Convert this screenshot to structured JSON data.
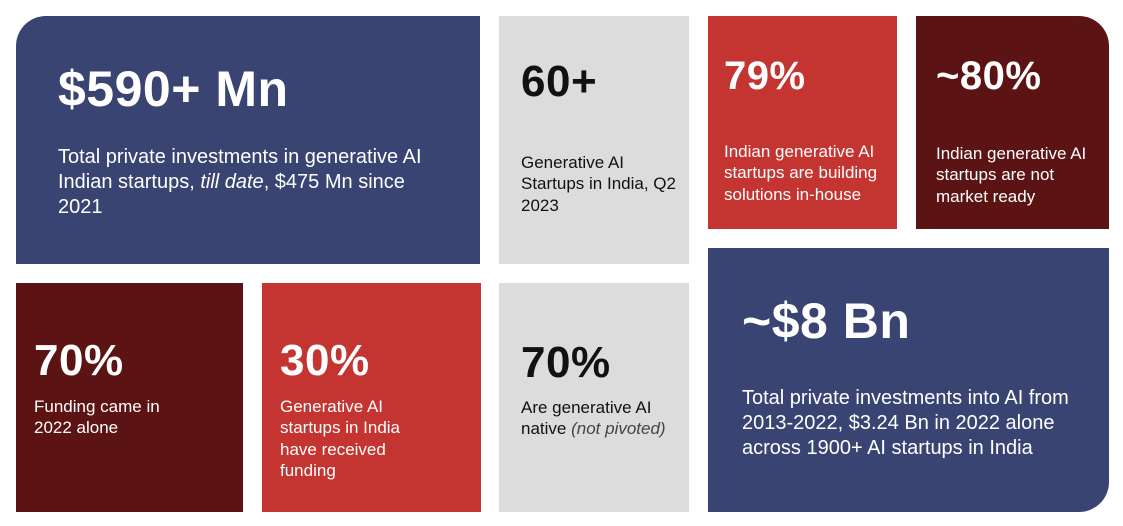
{
  "tiles": {
    "invest590": {
      "value": "$590+ Mn",
      "desc_main": "Total private investments in generative AI Indian startups, ",
      "desc_italic": "till date",
      "desc_tail": ", $475 Mn since 2021"
    },
    "startups60": {
      "value": "60+",
      "desc": "Generative AI Startups in India, Q2 2023"
    },
    "inhouse79": {
      "value": "79%",
      "desc": "Indian generative AI startups are building solutions in-house"
    },
    "notready80": {
      "value": "~80%",
      "desc": "Indian generative AI startups are not market ready"
    },
    "funding2022": {
      "value": "70%",
      "desc": "Funding came in 2022 alone"
    },
    "funded30": {
      "value": "30%",
      "desc": "Generative AI startups in India have received funding"
    },
    "native70": {
      "value": "70%",
      "desc_main": "Are generative AI native ",
      "desc_italic": "(not pivoted)"
    },
    "invest8bn": {
      "value": "~$8 Bn",
      "desc": "Total private investments into AI from 2013-2022, $3.24 Bn in 2022 alone across 1900+ AI startups in India"
    }
  },
  "colors": {
    "navy": "#3a4472",
    "red": "#c43431",
    "maroon": "#5b1413",
    "grey": "#dcdcdc"
  }
}
